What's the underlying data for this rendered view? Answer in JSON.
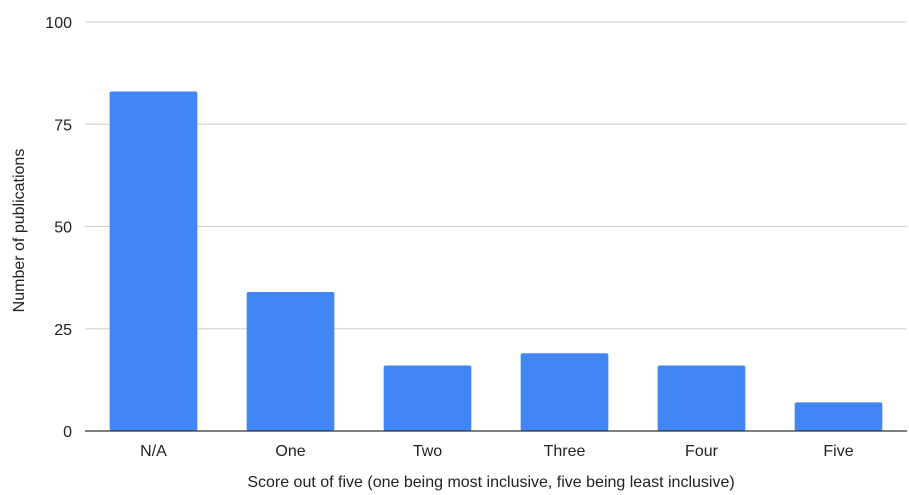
{
  "chart_data": {
    "type": "bar",
    "title": "",
    "xlabel": "Score out of five (one being most inclusive, five being least inclusive)",
    "ylabel": "Number of publications",
    "categories": [
      "N/A",
      "One",
      "Two",
      "Three",
      "Four",
      "Five"
    ],
    "values": [
      83,
      34,
      16,
      19,
      16,
      7
    ],
    "ylim": [
      0,
      100
    ],
    "yticks": [
      0,
      25,
      50,
      75,
      100
    ],
    "grid": true,
    "legend": "none",
    "bar_color": "#4285f4"
  }
}
